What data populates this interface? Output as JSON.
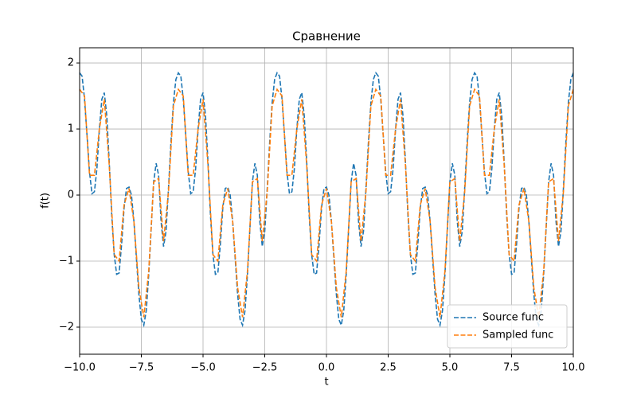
{
  "chart_data": {
    "type": "line",
    "title": "Сравнение",
    "xlabel": "t",
    "ylabel": "f(t)",
    "xlim": [
      -10,
      10
    ],
    "ylim": [
      -2.41,
      2.23
    ],
    "xticks": [
      {
        "value": -10,
        "label": "−10.0"
      },
      {
        "value": -7.5,
        "label": "−7.5"
      },
      {
        "value": -5,
        "label": "−5.0"
      },
      {
        "value": -2.5,
        "label": "−2.5"
      },
      {
        "value": 0,
        "label": "0.0"
      },
      2.5,
      {
        "value": 5,
        "label": "5.0"
      },
      7.5,
      {
        "value": 10,
        "label": "10.0"
      }
    ],
    "yticks": [
      {
        "value": -2,
        "label": "−2"
      },
      {
        "value": -1,
        "label": "−1"
      },
      0,
      1,
      2
    ],
    "grid": true,
    "legend": "lower right",
    "series": [
      {
        "name": "Source func",
        "color": "#1f77b4",
        "dash": true,
        "x": [
          -10,
          -9.9,
          -9.8,
          -9.7,
          -9.6,
          -9.5,
          -9.4,
          -9.3,
          -9.2,
          -9.1,
          -9,
          -8.9,
          -8.8,
          -8.7,
          -8.6,
          -8.5,
          -8.4,
          -8.3,
          -8.2,
          -8.1,
          -8,
          -7.9,
          -7.8,
          -7.7,
          -7.6,
          -7.5,
          -7.4,
          -7.3,
          -7.2,
          -7.1,
          -7,
          -6.9,
          -6.8,
          -6.7,
          -6.6,
          -6.5,
          -6.4,
          -6.3,
          -6.2,
          -6.1,
          -6,
          -5.9,
          -5.8,
          -5.7,
          -5.6,
          -5.5,
          -5.4,
          -5.3,
          -5.2,
          -5.1,
          -5,
          -4.9,
          -4.8,
          -4.7,
          -4.6,
          -4.5,
          -4.4,
          -4.3,
          -4.2,
          -4.1,
          -4,
          -3.9,
          -3.8,
          -3.7,
          -3.6,
          -3.5,
          -3.4,
          -3.3,
          -3.2,
          -3.1,
          -3,
          -2.9,
          -2.8,
          -2.7,
          -2.6,
          -2.5,
          -2.4,
          -2.3,
          -2.2,
          -2.1,
          -2,
          -1.9,
          -1.8,
          -1.7,
          -1.6,
          -1.5,
          -1.4,
          -1.3,
          -1.2,
          -1.1,
          -1,
          -0.9,
          -0.8,
          -0.7,
          -0.6,
          -0.5,
          -0.4,
          -0.3,
          -0.2,
          -0.1,
          0,
          0.1,
          0.2,
          0.3,
          0.4,
          0.5,
          0.6,
          0.7,
          0.8,
          0.9,
          1,
          1.1,
          1.2,
          1.3,
          1.4,
          1.5,
          1.6,
          1.7,
          1.8,
          1.9,
          2,
          2.1,
          2.2,
          2.3,
          2.4,
          2.5,
          2.6,
          2.7,
          2.8,
          2.9,
          3,
          3.1,
          3.2,
          3.3,
          3.4,
          3.5,
          3.6,
          3.7,
          3.8,
          3.9,
          4,
          4.1,
          4.2,
          4.3,
          4.4,
          4.5,
          4.6,
          4.7,
          4.8,
          4.9,
          5,
          5.1,
          5.2,
          5.3,
          5.4,
          5.5,
          5.6,
          5.7,
          5.8,
          5.9,
          6,
          6.1,
          6.2,
          6.3,
          6.4,
          6.5,
          6.6,
          6.7,
          6.8,
          6.9,
          7,
          7.1,
          7.2,
          7.3,
          7.4,
          7.5,
          7.6,
          7.7,
          7.8,
          7.9,
          8,
          8.1,
          8.2,
          8.3,
          8.4,
          8.5,
          8.6,
          8.7,
          8.8,
          8.9,
          9,
          9.1,
          9.2,
          9.3,
          9.4,
          9.5,
          9.6,
          9.7,
          9.8,
          9.9,
          10
        ],
        "values": [
          1.85,
          1.8,
          1.45,
          0.9,
          0.35,
          0.02,
          0.05,
          0.4,
          1.0,
          1.45,
          1.55,
          1.2,
          0.5,
          -0.3,
          -0.9,
          -1.2,
          -1.18,
          -0.75,
          -0.2,
          0.1,
          0.12,
          0.0,
          -0.4,
          -0.95,
          -1.5,
          -1.88,
          -1.97,
          -1.75,
          -1.2,
          -0.5,
          0.2,
          0.48,
          0.3,
          -0.4,
          -0.78,
          -0.55,
          0.1,
          0.8,
          1.4,
          1.75,
          1.85,
          1.8,
          1.45,
          0.9,
          0.35,
          0.02,
          0.05,
          0.4,
          1.0,
          1.45,
          1.55,
          1.2,
          0.5,
          -0.3,
          -0.9,
          -1.2,
          -1.18,
          -0.75,
          -0.2,
          0.1,
          0.12,
          0.0,
          -0.4,
          -0.95,
          -1.5,
          -1.88,
          -1.97,
          -1.75,
          -1.2,
          -0.5,
          0.2,
          0.48,
          0.3,
          -0.4,
          -0.78,
          -0.55,
          0.1,
          0.8,
          1.4,
          1.75,
          1.85,
          1.8,
          1.45,
          0.9,
          0.35,
          0.02,
          0.05,
          0.4,
          1.0,
          1.45,
          1.55,
          1.2,
          0.5,
          -0.3,
          -0.9,
          -1.2,
          -1.18,
          -0.75,
          -0.2,
          0.1,
          0.12,
          0.0,
          -0.4,
          -0.95,
          -1.5,
          -1.88,
          -1.97,
          -1.75,
          -1.2,
          -0.5,
          0.2,
          0.48,
          0.3,
          -0.4,
          -0.78,
          -0.55,
          0.1,
          0.8,
          1.4,
          1.75,
          1.85,
          1.8,
          1.45,
          0.9,
          0.35,
          0.02,
          0.05,
          0.4,
          1.0,
          1.45,
          1.55,
          1.2,
          0.5,
          -0.3,
          -0.9,
          -1.2,
          -1.18,
          -0.75,
          -0.2,
          0.1,
          0.12,
          0.0,
          -0.4,
          -0.95,
          -1.5,
          -1.88,
          -1.97,
          -1.75,
          -1.2,
          -0.5,
          0.2,
          0.48,
          0.3,
          -0.4,
          -0.78,
          -0.55,
          0.1,
          0.8,
          1.4,
          1.75,
          1.85,
          1.8,
          1.45,
          0.9,
          0.35,
          0.02,
          0.05,
          0.4,
          1.0,
          1.45,
          1.55,
          1.2,
          0.5,
          -0.3,
          -0.9,
          -1.2,
          -1.18,
          -0.75,
          -0.2,
          0.1,
          0.12,
          0.0,
          -0.4,
          -0.95,
          -1.5,
          -1.88,
          -1.97,
          -1.75,
          -1.2,
          -0.5,
          0.2,
          0.48,
          0.3,
          -0.4,
          -0.78,
          -0.55,
          0.1,
          0.8,
          1.4,
          1.75,
          1.85
        ]
      },
      {
        "name": "Sampled func",
        "color": "#ff7f0e",
        "dash": true,
        "x": [
          -10,
          -9.8,
          -9.6,
          -9.4,
          -9.2,
          -9,
          -8.8,
          -8.6,
          -8.4,
          -8.2,
          -8,
          -7.8,
          -7.6,
          -7.4,
          -7.2,
          -7,
          -6.8,
          -6.6,
          -6.4,
          -6.2,
          -6,
          -5.8,
          -5.6,
          -5.4,
          -5.2,
          -5,
          -4.8,
          -4.6,
          -4.4,
          -4.2,
          -4,
          -3.8,
          -3.6,
          -3.4,
          -3.2,
          -3,
          -2.8,
          -2.6,
          -2.4,
          -2.2,
          -2,
          -1.8,
          -1.6,
          -1.4,
          -1.2,
          -1,
          -0.8,
          -0.6,
          -0.4,
          -0.2,
          0,
          0.2,
          0.4,
          0.6,
          0.8,
          1,
          1.2,
          1.4,
          1.6,
          1.8,
          2,
          2.2,
          2.4,
          2.6,
          2.8,
          3,
          3.2,
          3.4,
          3.6,
          3.8,
          4,
          4.2,
          4.4,
          4.6,
          4.8,
          5,
          5.2,
          5.4,
          5.6,
          5.8,
          6,
          6.2,
          6.4,
          6.6,
          6.8,
          7,
          7.2,
          7.4,
          7.6,
          7.8,
          8,
          8.2,
          8.4,
          8.6,
          8.8,
          9,
          9.2,
          9.4,
          9.6,
          9.8,
          10
        ],
        "values": [
          1.6,
          1.5,
          0.3,
          0.3,
          1.0,
          1.45,
          0.45,
          -0.9,
          -1.0,
          -0.15,
          0.1,
          -0.4,
          -1.4,
          -1.85,
          -1.15,
          0.2,
          0.25,
          -0.7,
          0.05,
          1.35,
          1.6,
          1.5,
          0.3,
          0.3,
          1.0,
          1.45,
          0.45,
          -0.9,
          -1.0,
          -0.15,
          0.1,
          -0.4,
          -1.4,
          -1.85,
          -1.15,
          0.2,
          0.25,
          -0.7,
          0.05,
          1.35,
          1.6,
          1.5,
          0.3,
          0.3,
          1.0,
          1.45,
          0.45,
          -0.9,
          -1.0,
          -0.15,
          0.1,
          -0.4,
          -1.4,
          -1.85,
          -1.15,
          0.2,
          0.25,
          -0.7,
          0.05,
          1.35,
          1.6,
          1.5,
          0.3,
          0.3,
          1.0,
          1.45,
          0.45,
          -0.9,
          -1.0,
          -0.15,
          0.1,
          -0.4,
          -1.4,
          -1.85,
          -1.15,
          0.2,
          0.25,
          -0.7,
          0.05,
          1.35,
          1.6,
          1.5,
          0.3,
          0.3,
          1.0,
          1.45,
          0.45,
          -0.9,
          -1.0,
          -0.15,
          0.1,
          -0.4,
          -1.4,
          -1.85,
          -1.15,
          0.2,
          0.25,
          -0.7,
          0.05,
          1.35,
          1.6
        ]
      }
    ]
  }
}
